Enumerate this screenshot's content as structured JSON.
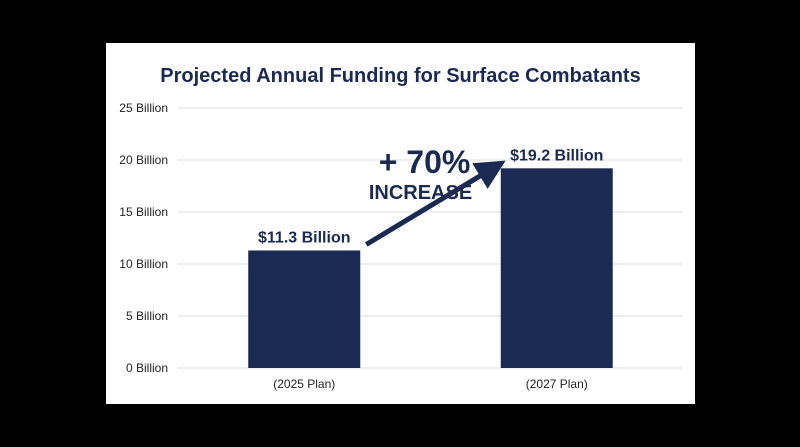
{
  "chart_data": {
    "type": "bar",
    "title": "Projected Annual Funding for Surface Combatants",
    "categories": [
      "(2025 Plan)",
      "(2027 Plan)"
    ],
    "values": [
      11.3,
      19.2
    ],
    "value_labels": [
      "$11.3 Billion",
      "$19.2 Billion"
    ],
    "ylim": [
      0,
      25
    ],
    "yticks": [
      0,
      5,
      10,
      15,
      20,
      25
    ],
    "ytick_labels": [
      "0 Billion",
      "5 Billion",
      "10 Billion",
      "15 Billion",
      "20 Billion",
      "25 Billion"
    ],
    "xlabel": "",
    "ylabel": "",
    "grid": true,
    "annotation": {
      "line1": "+ 70%",
      "line2": "INCREASE"
    },
    "colors": {
      "bar": "#1b2a52",
      "text": "#1b2a52",
      "grid": "#dddddd",
      "tick_text": "#222222"
    }
  }
}
